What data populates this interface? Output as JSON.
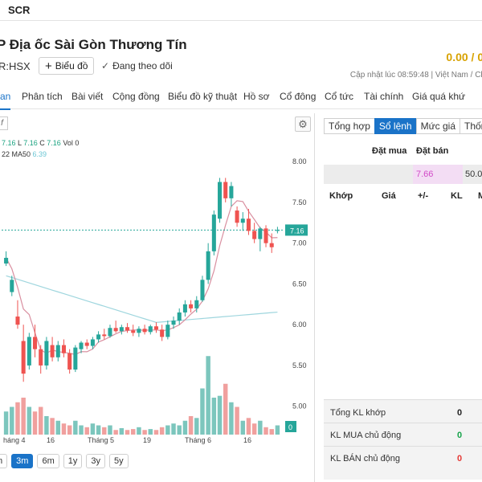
{
  "tab_title": "SCR",
  "header": {
    "stock_name": "P Địa ốc Sài Gòn Thương Tín",
    "ticker": "R:HSX",
    "chart_button": "Biểu đồ",
    "follow_label": "Đang theo dõi",
    "price_change": "0.00 / 0.",
    "update_info": "Cập nhật lúc   08:59:48  |  Việt Nam / Ch"
  },
  "nav": {
    "tabs": [
      "an",
      "Phân tích",
      "Bài viết",
      "Cộng đồng",
      "Biểu đồ kỹ thuật",
      "Hồ sơ",
      "Cổ đông",
      "Cổ tức",
      "Tài chính",
      "Giá quá khứ"
    ],
    "active_index": 0
  },
  "chart": {
    "fx": "f",
    "legend_line1": "L 7.16  L 7.16  C 7.16  Vol 0",
    "legend_line1_parts": {
      "o": "7.16",
      "h_l": "L 7.16",
      "c": "C 7.16",
      "vol": "Vol 0"
    },
    "legend_line2_prefix": "22  MA50",
    "legend_line2_value": "6.39",
    "last_price_tag": "7.16",
    "volume_tag": "0",
    "range_buttons": [
      "m",
      "3m",
      "6m",
      "1y",
      "3y",
      "5y"
    ],
    "range_active": "3m",
    "colors": {
      "up": "#26a69a",
      "down": "#ef5350",
      "ma_short": "#d98fa0",
      "ma50": "#9fd6de",
      "volume_up": "#7cc6bd",
      "volume_down": "#f0a09e"
    }
  },
  "chart_data": {
    "type": "candlestick",
    "x_tick_labels": [
      "háng 4",
      "16",
      "Tháng 5",
      "19",
      "Tháng 6",
      "16"
    ],
    "y_tick_labels": [
      "8.00",
      "7.50",
      "7.00",
      "6.50",
      "6.00",
      "5.50",
      "5.00"
    ],
    "ylim": [
      4.8,
      8.1
    ],
    "last_price": 7.16,
    "ohlc": [
      [
        6.75,
        6.9,
        6.72,
        6.82
      ],
      [
        6.4,
        6.6,
        6.35,
        6.55
      ],
      [
        6.1,
        6.3,
        5.95,
        6.0
      ],
      [
        5.8,
        6.0,
        5.3,
        5.4
      ],
      [
        5.5,
        5.9,
        5.45,
        5.85
      ],
      [
        5.85,
        6.0,
        5.6,
        5.7
      ],
      [
        5.7,
        5.75,
        5.4,
        5.5
      ],
      [
        5.5,
        5.85,
        5.45,
        5.8
      ],
      [
        5.75,
        5.85,
        5.55,
        5.6
      ],
      [
        5.6,
        5.8,
        5.55,
        5.75
      ],
      [
        5.75,
        5.82,
        5.6,
        5.65
      ],
      [
        5.65,
        5.7,
        5.4,
        5.45
      ],
      [
        5.45,
        5.75,
        5.42,
        5.72
      ],
      [
        5.7,
        5.8,
        5.65,
        5.78
      ],
      [
        5.78,
        5.82,
        5.7,
        5.74
      ],
      [
        5.74,
        5.85,
        5.7,
        5.82
      ],
      [
        5.82,
        5.92,
        5.78,
        5.88
      ],
      [
        5.88,
        5.95,
        5.82,
        5.86
      ],
      [
        5.86,
        6.0,
        5.84,
        5.96
      ],
      [
        5.96,
        6.05,
        5.9,
        5.92
      ],
      [
        5.92,
        6.0,
        5.88,
        5.97
      ],
      [
        5.97,
        6.02,
        5.9,
        5.93
      ],
      [
        5.93,
        6.0,
        5.86,
        5.9
      ],
      [
        5.9,
        5.98,
        5.85,
        5.95
      ],
      [
        5.95,
        6.0,
        5.88,
        5.91
      ],
      [
        5.91,
        6.0,
        5.88,
        5.98
      ],
      [
        5.98,
        6.03,
        5.9,
        5.94
      ],
      [
        5.94,
        6.0,
        5.8,
        5.85
      ],
      [
        5.85,
        6.05,
        5.82,
        6.0
      ],
      [
        6.0,
        6.1,
        5.95,
        6.05
      ],
      [
        6.05,
        6.2,
        6.0,
        6.15
      ],
      [
        6.15,
        6.3,
        6.1,
        6.25
      ],
      [
        6.25,
        6.3,
        6.15,
        6.2
      ],
      [
        6.2,
        6.35,
        6.15,
        6.3
      ],
      [
        6.3,
        6.6,
        6.28,
        6.55
      ],
      [
        6.55,
        7.0,
        6.5,
        6.9
      ],
      [
        6.9,
        7.4,
        6.85,
        7.35
      ],
      [
        7.3,
        7.8,
        7.25,
        7.75
      ],
      [
        7.75,
        7.8,
        7.5,
        7.55
      ],
      [
        7.55,
        7.75,
        7.45,
        7.7
      ],
      [
        7.4,
        7.45,
        7.2,
        7.25
      ],
      [
        7.25,
        7.38,
        7.15,
        7.3
      ],
      [
        7.3,
        7.42,
        7.1,
        7.15
      ],
      [
        7.15,
        7.25,
        7.0,
        7.05
      ],
      [
        7.05,
        7.2,
        6.9,
        7.18
      ],
      [
        7.18,
        7.22,
        6.95,
        7.0
      ],
      [
        7.0,
        7.12,
        6.88,
        6.95
      ],
      [
        7.16,
        7.2,
        7.12,
        7.16
      ]
    ],
    "volume_relative": [
      0.25,
      0.3,
      0.35,
      0.4,
      0.3,
      0.25,
      0.3,
      0.2,
      0.18,
      0.15,
      0.12,
      0.1,
      0.15,
      0.1,
      0.08,
      0.12,
      0.1,
      0.08,
      0.1,
      0.05,
      0.07,
      0.05,
      0.06,
      0.08,
      0.05,
      0.06,
      0.05,
      0.08,
      0.1,
      0.12,
      0.1,
      0.15,
      0.2,
      0.18,
      0.5,
      0.85,
      0.4,
      0.42,
      0.55,
      0.35,
      0.3,
      0.15,
      0.18,
      0.12,
      0.15,
      0.08,
      0.06,
      0.1
    ]
  },
  "orderbook": {
    "tabs": [
      "Tổng hợp",
      "Sổ lệnh",
      "Mức giá",
      "Thống"
    ],
    "active_index": 1,
    "col_buy": "Đặt mua",
    "col_sell": "Đặt bán",
    "sell_price": "7.66",
    "sell_volume": "50.0",
    "match_headers": [
      "Khớp",
      "Giá",
      "+/-",
      "KL",
      "M"
    ],
    "summary": [
      {
        "label": "Tổng KL khớp",
        "value": "0",
        "color": "#222222"
      },
      {
        "label": "KL MUA chủ động",
        "value": "0",
        "color": "#16a34a"
      },
      {
        "label": "KL BÁN chủ động",
        "value": "0",
        "color": "#e53935"
      }
    ]
  }
}
